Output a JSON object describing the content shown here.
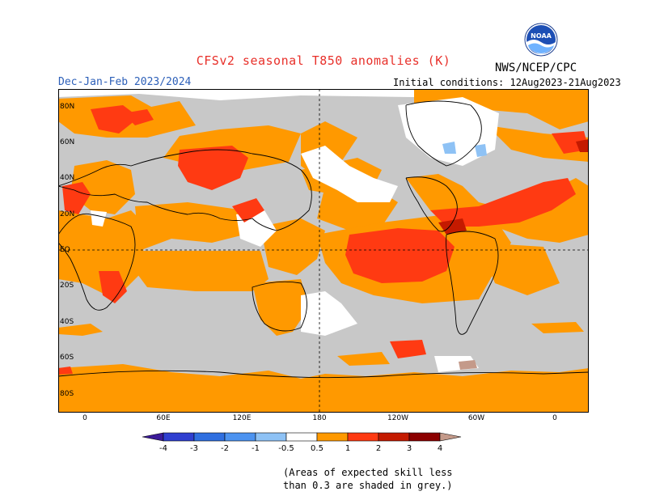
{
  "title": "CFSv2 seasonal T850 anomalies (K)",
  "agency": "NWS/NCEP/CPC",
  "logo_text": "NOAA",
  "season": "Dec-Jan-Feb 2023/2024",
  "initial_conditions": "Initial conditions: 12Aug2023-21Aug2023",
  "lat_labels": [
    "80N",
    "60N",
    "40N",
    "20N",
    "EQ",
    "20S",
    "40S",
    "60S",
    "80S"
  ],
  "lon_labels": [
    "0",
    "60E",
    "120E",
    "180",
    "120W",
    "60W",
    "0"
  ],
  "colorbar": {
    "labels": [
      "-4",
      "-3",
      "-2",
      "-1",
      "-0.5",
      "0.5",
      "1",
      "2",
      "3",
      "4"
    ],
    "colors": {
      "lt_-4": "#3b1a99",
      "-4_-3": "#2f3fd0",
      "-3_-2": "#2f6fe0",
      "-2_-1": "#4c93f0",
      "-1_-0.5": "#8ec2f5",
      "-0.5_0.5": "#ffffff",
      "0.5_1": "#ff9900",
      "1_2": "#ff3a12",
      "2_3": "#c41a00",
      "3_4": "#8c0000",
      "4_plus": "#c49a8a"
    }
  },
  "skill_note": [
    "(Areas of expected skill less",
    "than 0.3 are shaded in grey.)"
  ],
  "colors": {
    "grey_low_skill": "#c8c8c8",
    "title_red": "#e8302a",
    "season_blue": "#2c5fb8"
  }
}
